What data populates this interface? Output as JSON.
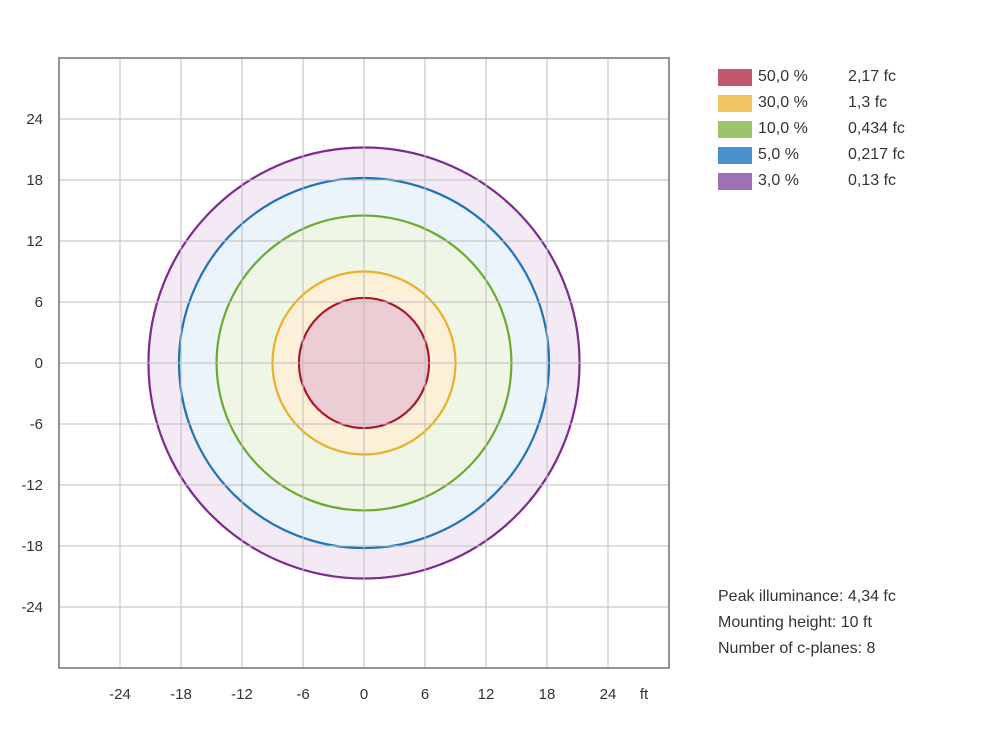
{
  "chart_data": {
    "type": "isolux-contour",
    "x_unit": "ft",
    "xlim": [
      -30,
      30
    ],
    "ylim": [
      -30,
      30
    ],
    "x_ticks": [
      -24,
      -18,
      -12,
      -6,
      0,
      6,
      12,
      18,
      24
    ],
    "y_ticks": [
      24,
      18,
      12,
      6,
      0,
      -6,
      -12,
      -18,
      -24
    ],
    "grid_step": 6,
    "grid": true,
    "legend_placement": "top-right",
    "contours": [
      {
        "percent": "3,0 %",
        "value": "0,13 fc",
        "radius": 21.2,
        "stroke": "#7b2a8f",
        "fill": "#f4eaf6",
        "swatch": "#a070b4"
      },
      {
        "percent": "5,0 %",
        "value": "0,217 fc",
        "radius": 18.2,
        "stroke": "#1f73b7",
        "fill": "#ebf3fb",
        "swatch": "#4a90cd"
      },
      {
        "percent": "10,0 %",
        "value": "0,434 fc",
        "radius": 14.5,
        "stroke": "#6aaa2e",
        "fill": "#f0f6e6",
        "swatch": "#9cc46c"
      },
      {
        "percent": "30,0 %",
        "value": "1,3 fc",
        "radius": 9.0,
        "stroke": "#e9b02b",
        "fill": "#fcf1d8",
        "swatch": "#f1c462"
      },
      {
        "percent": "50,0 %",
        "value": "2,17 fc",
        "radius": 6.4,
        "stroke": "#a9182f",
        "fill": "#edcdd4",
        "swatch": "#c0596c"
      }
    ]
  },
  "legend": [
    {
      "percent": "50,0 %",
      "value": "2,17 fc",
      "color": "#c0596c"
    },
    {
      "percent": "30,0 %",
      "value": "1,3 fc",
      "color": "#f1c462"
    },
    {
      "percent": "10,0 %",
      "value": "0,434 fc",
      "color": "#9cc46c"
    },
    {
      "percent": "5,0 %",
      "value": "0,217 fc",
      "color": "#4a90cd"
    },
    {
      "percent": "3,0 %",
      "value": "0,13 fc",
      "color": "#a070b4"
    }
  ],
  "info": {
    "peak": "Peak illuminance: 4,34 fc",
    "height": "Mounting height: 10 ft",
    "planes": "Number of c-planes: 8"
  }
}
